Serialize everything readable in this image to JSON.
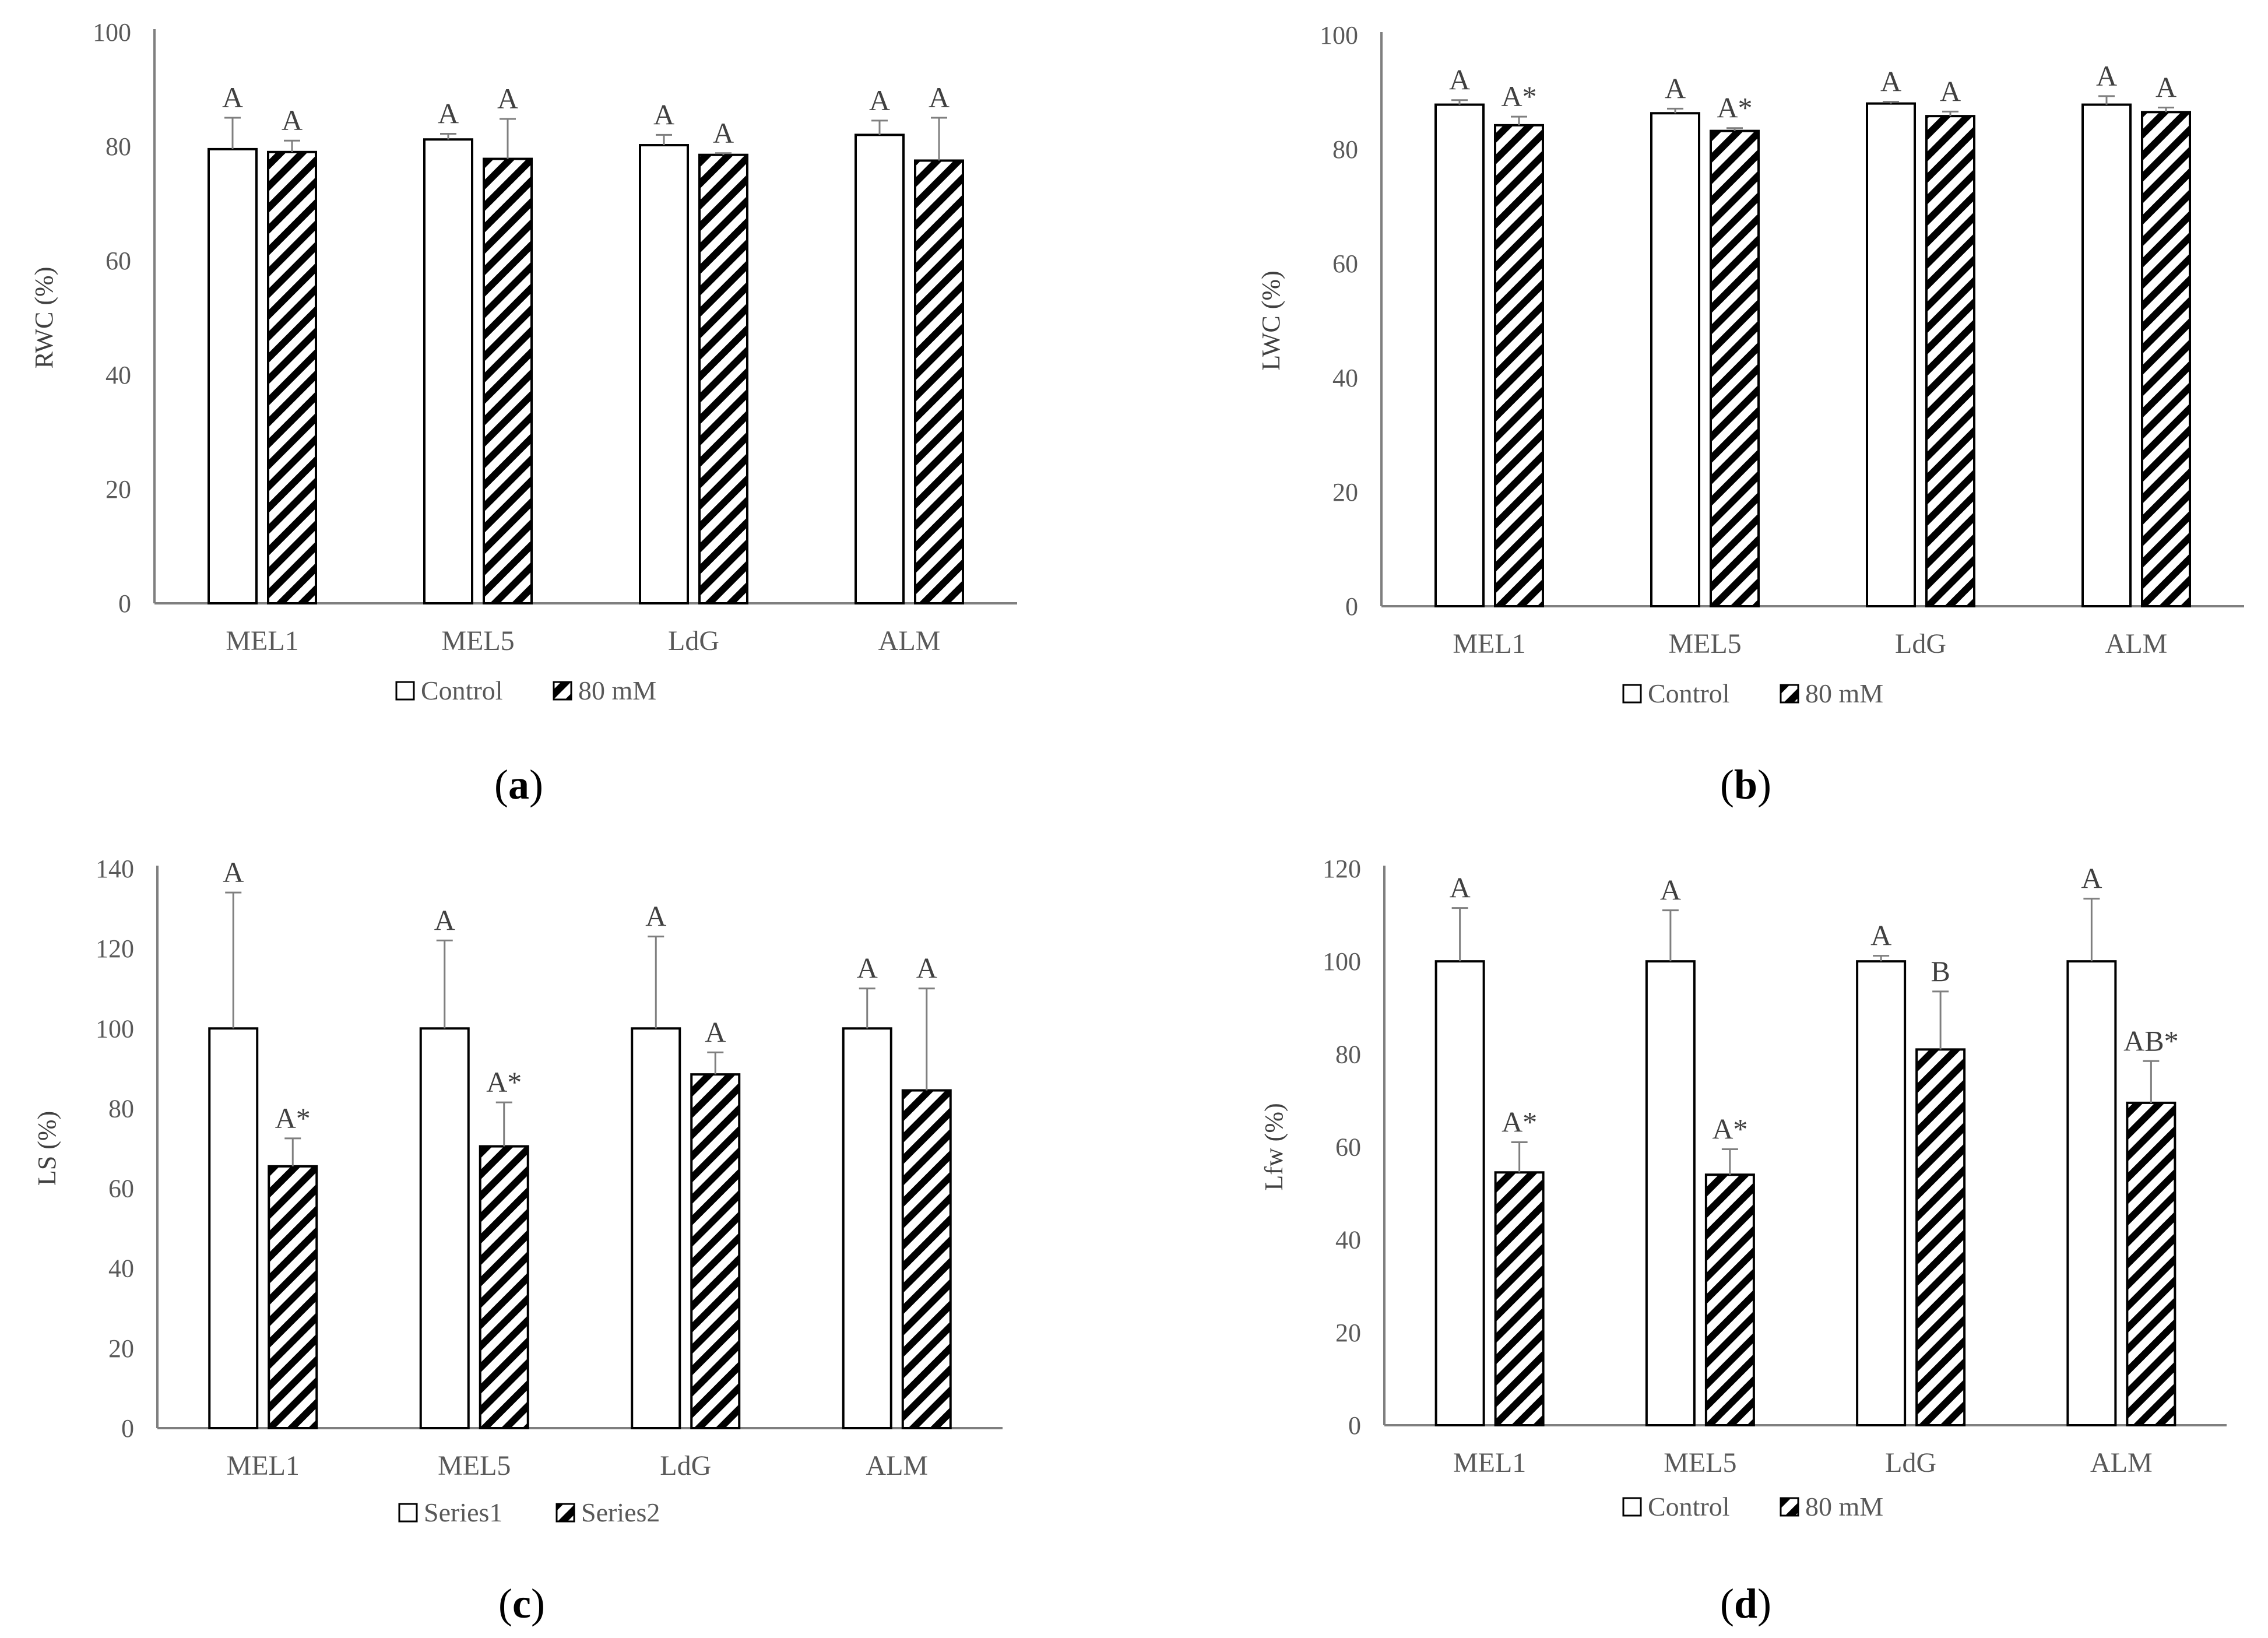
{
  "chart_data": [
    {
      "type": "bar",
      "panel_label": "a",
      "title": "",
      "xlabel": "",
      "ylabel": "RWC (%)",
      "ylim": [
        0,
        100
      ],
      "yticks": [
        0,
        20,
        40,
        60,
        80,
        100
      ],
      "categories": [
        "MEL1",
        "MEL5",
        "LdG",
        "ALM"
      ],
      "series": [
        {
          "name": "Control",
          "pattern": "open",
          "values": [
            79.5,
            81.2,
            80.2,
            82.0
          ],
          "errors": [
            5.5,
            1.0,
            1.8,
            2.5
          ],
          "letters": [
            "A",
            "A",
            "A",
            "A"
          ]
        },
        {
          "name": "80 mM",
          "pattern": "hatched",
          "values": [
            79.0,
            77.8,
            78.5,
            77.5
          ],
          "errors": [
            2.0,
            7.0,
            0.3,
            7.5
          ],
          "letters": [
            "A",
            "A",
            "A",
            "A"
          ]
        }
      ]
    },
    {
      "type": "bar",
      "panel_label": "b",
      "title": "",
      "xlabel": "",
      "ylabel": "LWC (%)",
      "ylim": [
        0,
        100
      ],
      "yticks": [
        0,
        20,
        40,
        60,
        80,
        100
      ],
      "categories": [
        "MEL1",
        "MEL5",
        "LdG",
        "ALM"
      ],
      "series": [
        {
          "name": "Control",
          "pattern": "open",
          "values": [
            87.8,
            86.3,
            88.0,
            87.8
          ],
          "errors": [
            0.8,
            0.8,
            0.3,
            1.5
          ],
          "letters": [
            "A",
            "A",
            "A",
            "A"
          ]
        },
        {
          "name": "80 mM",
          "pattern": "hatched",
          "values": [
            84.2,
            83.2,
            85.8,
            86.5
          ],
          "errors": [
            1.5,
            0.5,
            0.8,
            0.8
          ],
          "letters": [
            "A*",
            "A*",
            "A",
            "A"
          ]
        }
      ]
    },
    {
      "type": "bar",
      "panel_label": "c",
      "title": "",
      "xlabel": "",
      "ylabel": "LS (%)",
      "ylim": [
        0,
        140
      ],
      "yticks": [
        0,
        20,
        40,
        60,
        80,
        100,
        120,
        140
      ],
      "categories": [
        "MEL1",
        "MEL5",
        "LdG",
        "ALM"
      ],
      "series": [
        {
          "name": "Series1",
          "pattern": "open",
          "values": [
            100,
            100,
            100,
            100
          ],
          "errors": [
            34,
            22,
            23,
            10
          ],
          "letters": [
            "A",
            "A",
            "A",
            "A"
          ]
        },
        {
          "name": "Series2",
          "pattern": "hatched",
          "values": [
            65.5,
            70.5,
            88.5,
            84.5
          ],
          "errors": [
            7,
            11,
            5.5,
            25.5
          ],
          "letters": [
            "A*",
            "A*",
            "A",
            "A"
          ]
        }
      ]
    },
    {
      "type": "bar",
      "panel_label": "d",
      "title": "",
      "xlabel": "",
      "ylabel": "Lfw (%)",
      "ylim": [
        0,
        120
      ],
      "yticks": [
        0,
        20,
        40,
        60,
        80,
        100,
        120
      ],
      "categories": [
        "MEL1",
        "MEL5",
        "LdG",
        "ALM"
      ],
      "series": [
        {
          "name": "Control",
          "pattern": "open",
          "values": [
            100,
            100,
            100,
            100
          ],
          "errors": [
            11.5,
            11,
            1.2,
            13.5
          ],
          "letters": [
            "A",
            "A",
            "A",
            "A"
          ]
        },
        {
          "name": "80 mM",
          "pattern": "hatched",
          "values": [
            54.5,
            54,
            81,
            69.5
          ],
          "errors": [
            6.5,
            5.5,
            12.5,
            9
          ],
          "letters": [
            "A*",
            "A*",
            "B",
            "AB*"
          ]
        }
      ]
    }
  ]
}
